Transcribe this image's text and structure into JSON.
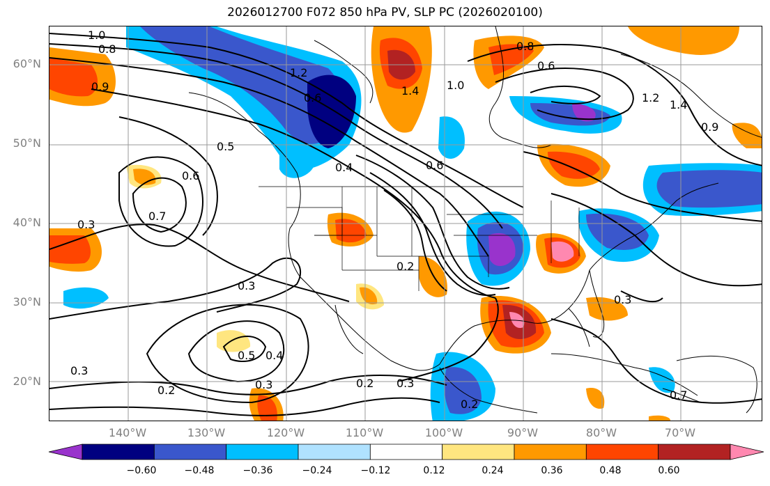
{
  "title": "2026012700 F072 850 hPa PV, SLP PC (2026020100)",
  "map": {
    "lat_labels": [
      "60°N",
      "50°N",
      "40°N",
      "30°N",
      "20°N"
    ],
    "lon_labels": [
      "140°W",
      "130°W",
      "120°W",
      "110°W",
      "100°W",
      "90°W",
      "80°W",
      "70°W"
    ],
    "contour_labels": [
      "1.0",
      "0.8",
      "0.9",
      "1.2",
      "0.6",
      "1.4",
      "1.0",
      "0.8",
      "1.4",
      "0.6",
      "1.2",
      "0.9",
      "0.5",
      "0.6",
      "0.7",
      "0.3",
      "0.3",
      "0.5",
      "0.4",
      "0.3",
      "0.2",
      "0.3",
      "0.2",
      "0.3",
      "0.2",
      "0.2",
      "0.3",
      "0.7",
      "0.4",
      "0.6"
    ]
  },
  "colorbar": {
    "ticks": [
      "−0.60",
      "−0.48",
      "−0.36",
      "−0.24",
      "−0.12",
      "0.12",
      "0.24",
      "0.36",
      "0.48",
      "0.60"
    ],
    "colors": [
      "#9933cc",
      "#000080",
      "#3a57cc",
      "#00bfff",
      "#b0e2ff",
      "#ffffff",
      "#ffe680",
      "#ff9900",
      "#ff4500",
      "#b22222",
      "#ff88b0"
    ]
  }
}
